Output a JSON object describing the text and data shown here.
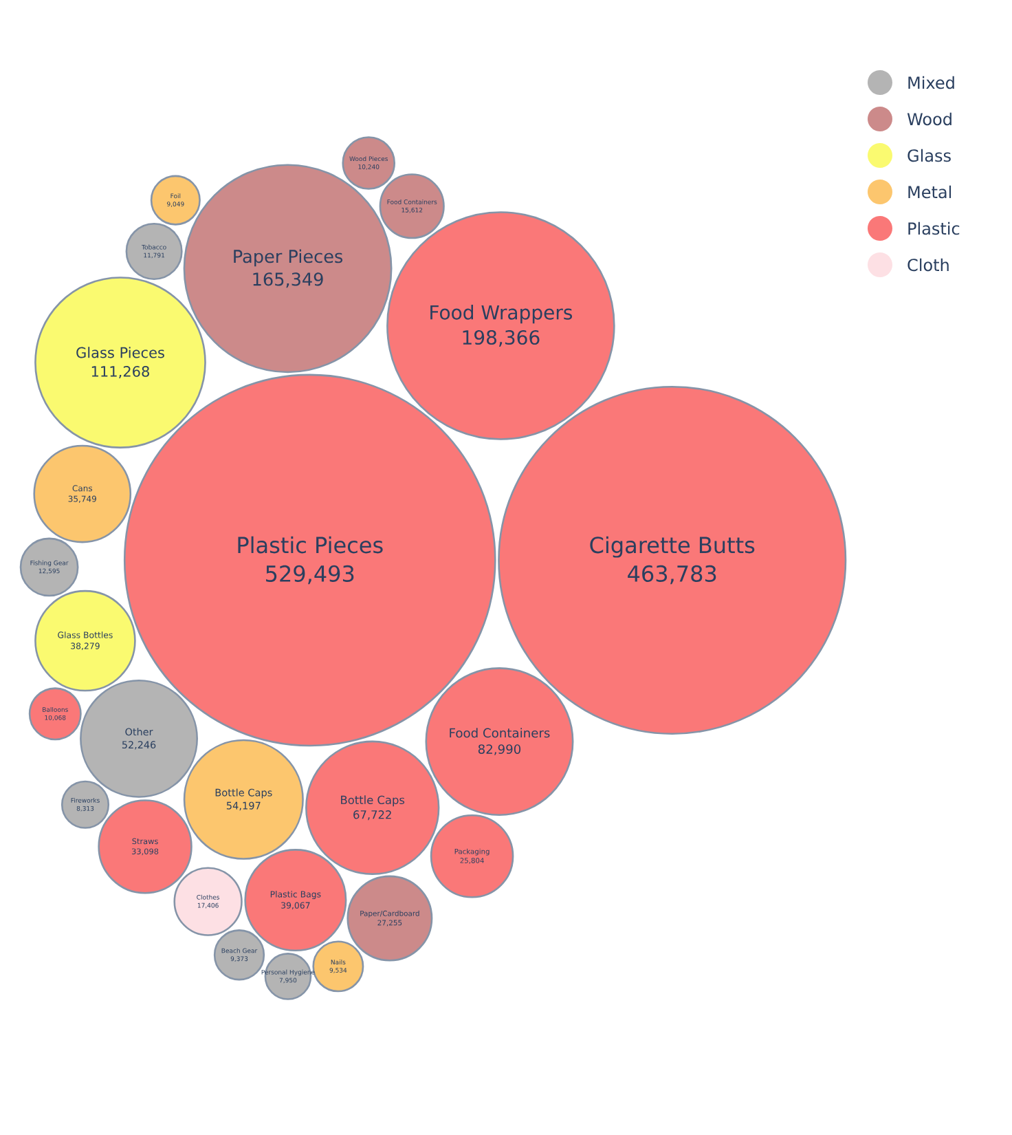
{
  "chart_data": {
    "type": "other",
    "legend": "top right",
    "categories": [
      "Other",
      "Fishing Gear",
      "Tobacco",
      "Beach Gear",
      "Fireworks",
      "Personal Hygiene",
      "Paper Pieces",
      "Paper/Cardboard",
      "Food Containers",
      "Wood Pieces",
      "Glass Pieces",
      "Glass Bottles",
      "Bottle Caps",
      "Cans",
      "Nails",
      "Foil",
      "Plastic Pieces",
      "Cigarette Butts",
      "Food Wrappers",
      "Food Containers",
      "Bottle Caps",
      "Plastic Bags",
      "Straws",
      "Packaging",
      "Balloons",
      "Clothes"
    ],
    "series": [
      {
        "name": "Mixed",
        "color": "#b4b4b4",
        "values": [
          52246,
          12595,
          11791,
          9373,
          8313,
          7950,
          null,
          null,
          null,
          null,
          null,
          null,
          null,
          null,
          null,
          null,
          null,
          null,
          null,
          null,
          null,
          null,
          null,
          null,
          null,
          null
        ],
        "value_labels": [
          "52,246",
          "12,595",
          "11,791",
          "9,373",
          "8,313",
          "7,950",
          null,
          null,
          null,
          null,
          null,
          null,
          null,
          null,
          null,
          null,
          null,
          null,
          null,
          null,
          null,
          null,
          null,
          null,
          null,
          null
        ]
      },
      {
        "name": "Wood",
        "color": "#cc8a8a",
        "values": [
          null,
          null,
          null,
          null,
          null,
          null,
          165349,
          27255,
          15612,
          10240,
          null,
          null,
          null,
          null,
          null,
          null,
          null,
          null,
          null,
          null,
          null,
          null,
          null,
          null,
          null,
          null
        ],
        "value_labels": [
          null,
          null,
          null,
          null,
          null,
          null,
          "165,349",
          "27,255",
          "15,612",
          "10,240",
          null,
          null,
          null,
          null,
          null,
          null,
          null,
          null,
          null,
          null,
          null,
          null,
          null,
          null,
          null,
          null
        ]
      },
      {
        "name": "Glass",
        "color": "#fafa70",
        "values": [
          null,
          null,
          null,
          null,
          null,
          null,
          null,
          null,
          null,
          null,
          111268,
          38279,
          null,
          null,
          null,
          null,
          null,
          null,
          null,
          null,
          null,
          null,
          null,
          null,
          null,
          null
        ],
        "value_labels": [
          null,
          null,
          null,
          null,
          null,
          null,
          null,
          null,
          null,
          null,
          "111,268",
          "38,279",
          null,
          null,
          null,
          null,
          null,
          null,
          null,
          null,
          null,
          null,
          null,
          null,
          null,
          null
        ]
      },
      {
        "name": "Metal",
        "color": "#fcc66e",
        "values": [
          null,
          null,
          null,
          null,
          null,
          null,
          null,
          null,
          null,
          null,
          null,
          null,
          54197,
          35749,
          9534,
          9049,
          null,
          null,
          null,
          null,
          null,
          null,
          null,
          null,
          null,
          null
        ],
        "value_labels": [
          null,
          null,
          null,
          null,
          null,
          null,
          null,
          null,
          null,
          null,
          null,
          null,
          "54,197",
          "35,749",
          "9,534",
          "9,049",
          null,
          null,
          null,
          null,
          null,
          null,
          null,
          null,
          null,
          null
        ]
      },
      {
        "name": "Plastic",
        "color": "#fa7878",
        "values": [
          null,
          null,
          null,
          null,
          null,
          null,
          null,
          null,
          null,
          null,
          null,
          null,
          null,
          null,
          null,
          null,
          529493,
          463783,
          198366,
          82990,
          67722,
          39067,
          33098,
          25804,
          10068,
          null
        ],
        "value_labels": [
          null,
          null,
          null,
          null,
          null,
          null,
          null,
          null,
          null,
          null,
          null,
          null,
          null,
          null,
          null,
          null,
          "529,493",
          "463,783",
          "198,366",
          "82,990",
          "67,722",
          "39,067",
          "33,098",
          "25,804",
          "10,068",
          null
        ]
      },
      {
        "name": "Cloth",
        "color": "#fde0e4",
        "values": [
          null,
          null,
          null,
          null,
          null,
          null,
          null,
          null,
          null,
          null,
          null,
          null,
          null,
          null,
          null,
          null,
          null,
          null,
          null,
          null,
          null,
          null,
          null,
          null,
          null,
          17406
        ],
        "value_labels": [
          null,
          null,
          null,
          null,
          null,
          null,
          null,
          null,
          null,
          null,
          null,
          null,
          null,
          null,
          null,
          null,
          null,
          null,
          null,
          null,
          null,
          null,
          null,
          null,
          null,
          "17,406"
        ]
      }
    ]
  }
}
